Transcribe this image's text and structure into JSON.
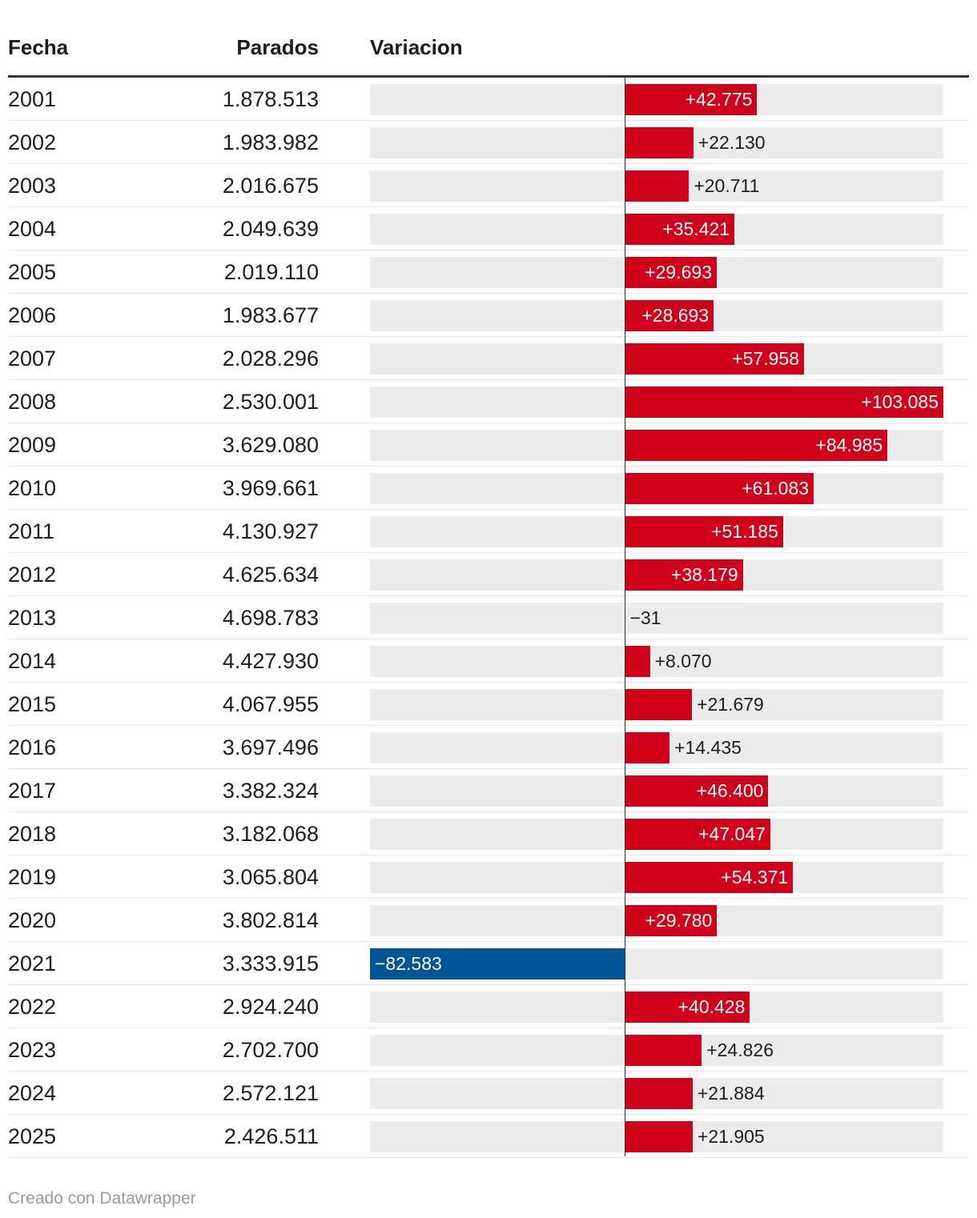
{
  "header": {
    "col_fecha": "Fecha",
    "col_parados": "Parados",
    "col_variacion": "Variacion"
  },
  "footer": {
    "credit": "Creado con Datawrapper"
  },
  "colors": {
    "positive": "#d0021b",
    "negative": "#005596",
    "track": "#ececec"
  },
  "chart_data": {
    "type": "table",
    "columns": [
      "Fecha",
      "Parados",
      "Variacion"
    ],
    "bar_column": "Variacion",
    "bar_range": [
      -82583,
      103085
    ],
    "rows": [
      {
        "fecha": "2001",
        "parados": "1.878.513",
        "variacion": 42775,
        "variacion_label": "+42.775"
      },
      {
        "fecha": "2002",
        "parados": "1.983.982",
        "variacion": 22130,
        "variacion_label": "+22.130"
      },
      {
        "fecha": "2003",
        "parados": "2.016.675",
        "variacion": 20711,
        "variacion_label": "+20.711"
      },
      {
        "fecha": "2004",
        "parados": "2.049.639",
        "variacion": 35421,
        "variacion_label": "+35.421"
      },
      {
        "fecha": "2005",
        "parados": "2.019.110",
        "variacion": 29693,
        "variacion_label": "+29.693"
      },
      {
        "fecha": "2006",
        "parados": "1.983.677",
        "variacion": 28693,
        "variacion_label": "+28.693"
      },
      {
        "fecha": "2007",
        "parados": "2.028.296",
        "variacion": 57958,
        "variacion_label": "+57.958"
      },
      {
        "fecha": "2008",
        "parados": "2.530.001",
        "variacion": 103085,
        "variacion_label": "+103.085"
      },
      {
        "fecha": "2009",
        "parados": "3.629.080",
        "variacion": 84985,
        "variacion_label": "+84.985"
      },
      {
        "fecha": "2010",
        "parados": "3.969.661",
        "variacion": 61083,
        "variacion_label": "+61.083"
      },
      {
        "fecha": "2011",
        "parados": "4.130.927",
        "variacion": 51185,
        "variacion_label": "+51.185"
      },
      {
        "fecha": "2012",
        "parados": "4.625.634",
        "variacion": 38179,
        "variacion_label": "+38.179"
      },
      {
        "fecha": "2013",
        "parados": "4.698.783",
        "variacion": -31,
        "variacion_label": "−31"
      },
      {
        "fecha": "2014",
        "parados": "4.427.930",
        "variacion": 8070,
        "variacion_label": "+8.070"
      },
      {
        "fecha": "2015",
        "parados": "4.067.955",
        "variacion": 21679,
        "variacion_label": "+21.679"
      },
      {
        "fecha": "2016",
        "parados": "3.697.496",
        "variacion": 14435,
        "variacion_label": "+14.435"
      },
      {
        "fecha": "2017",
        "parados": "3.382.324",
        "variacion": 46400,
        "variacion_label": "+46.400"
      },
      {
        "fecha": "2018",
        "parados": "3.182.068",
        "variacion": 47047,
        "variacion_label": "+47.047"
      },
      {
        "fecha": "2019",
        "parados": "3.065.804",
        "variacion": 54371,
        "variacion_label": "+54.371"
      },
      {
        "fecha": "2020",
        "parados": "3.802.814",
        "variacion": 29780,
        "variacion_label": "+29.780"
      },
      {
        "fecha": "2021",
        "parados": "3.333.915",
        "variacion": -82583,
        "variacion_label": "−82.583"
      },
      {
        "fecha": "2022",
        "parados": "2.924.240",
        "variacion": 40428,
        "variacion_label": "+40.428"
      },
      {
        "fecha": "2023",
        "parados": "2.702.700",
        "variacion": 24826,
        "variacion_label": "+24.826"
      },
      {
        "fecha": "2024",
        "parados": "2.572.121",
        "variacion": 21884,
        "variacion_label": "+21.884"
      },
      {
        "fecha": "2025",
        "parados": "2.426.511",
        "variacion": 21905,
        "variacion_label": "+21.905"
      }
    ]
  }
}
